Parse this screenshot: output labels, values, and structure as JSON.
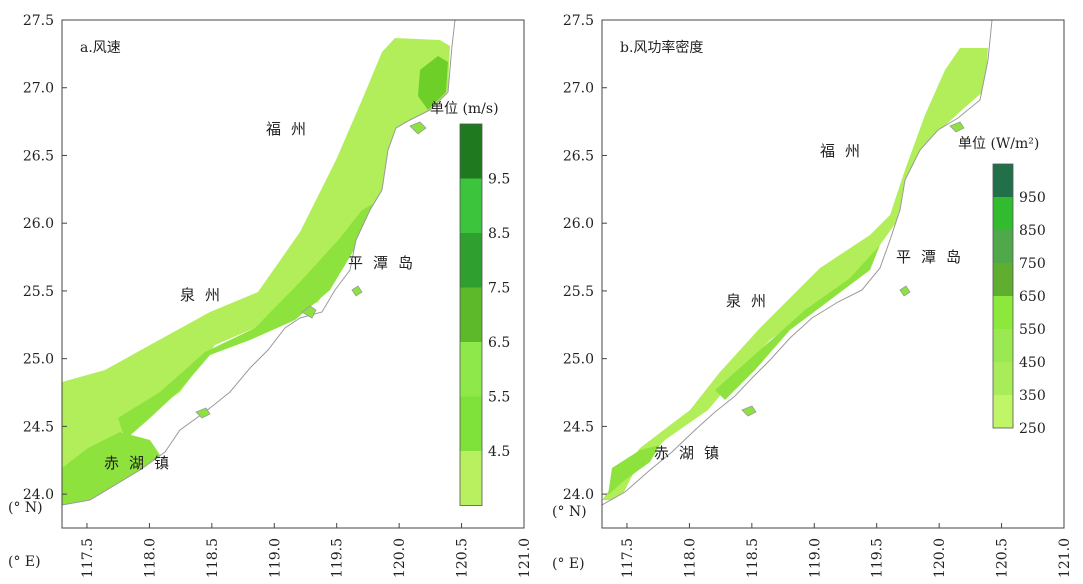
{
  "panels": [
    {
      "title": "a.风速",
      "unit_label": "单位 (m/s)",
      "legend": {
        "labels": [
          "9.5",
          "8.5",
          "7.5",
          "6.5",
          "5.5",
          "4.5"
        ],
        "colors": [
          "#1f7a1f",
          "#3cc43c",
          "#2fa02f",
          "#5db82a",
          "#8fe84a",
          "#7ee23a",
          "#b8f060"
        ]
      },
      "places": [
        {
          "name": "福州"
        },
        {
          "name": "平潭岛"
        },
        {
          "name": "泉州"
        },
        {
          "name": "赤湖镇"
        }
      ],
      "colors": {
        "low": "#b2ee5a",
        "mid": "#8ee23e",
        "high": "#6dcf28",
        "peak": "#3fa82f"
      }
    },
    {
      "title": "b.风功率密度",
      "unit_label": "单位 (W/m²)",
      "legend": {
        "labels": [
          "950",
          "850",
          "750",
          "650",
          "550",
          "450",
          "350",
          "250"
        ],
        "colors": [
          "#22704a",
          "#33bb2f",
          "#4fa84a",
          "#5fae2f",
          "#8de83c",
          "#9ae852",
          "#a9ec5a",
          "#bff566"
        ]
      },
      "places": [
        {
          "name": "福州"
        },
        {
          "name": "平潭岛"
        },
        {
          "name": "泉州"
        },
        {
          "name": "赤湖镇"
        }
      ],
      "colors": {
        "low": "#b2ee5a",
        "mid": "#8ee23e",
        "high": "#6dcf28",
        "peak": "#3fa82f"
      }
    }
  ],
  "axes": {
    "y_ticks": [
      "27.5",
      "27.0",
      "26.5",
      "26.0",
      "25.5",
      "25.0",
      "24.5",
      "24.0"
    ],
    "x_ticks": [
      "117.5",
      "118.0",
      "118.5",
      "119.0",
      "119.5",
      "120.0",
      "120.5",
      "121.0"
    ],
    "y_unit": "(° N)",
    "x_unit": "(° E)"
  }
}
